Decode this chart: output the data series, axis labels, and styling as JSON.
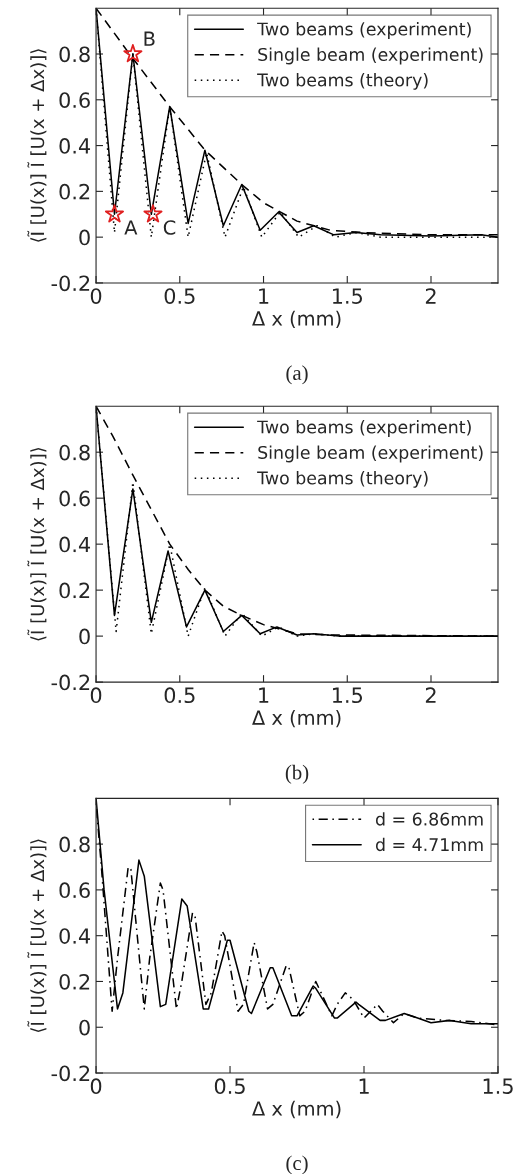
{
  "chart_data": [
    {
      "type": "line",
      "xlabel": "Δ x (mm)",
      "ylabel": "⟨Ĩ [U(x)] Ĩ [U(x + Δx)]⟩",
      "xlim": [
        0,
        2.4
      ],
      "ylim": [
        -0.2,
        1.0
      ],
      "xticks": [
        0,
        0.5,
        1,
        1.5,
        2
      ],
      "yticks": [
        -0.2,
        0,
        0.2,
        0.4,
        0.6,
        0.8
      ],
      "grid": false,
      "legend": "top right",
      "series": [
        {
          "name": "Two beams (experiment)",
          "color": "#000000",
          "line_style": "solid",
          "x": [
            0,
            0.11,
            0.22,
            0.33,
            0.44,
            0.55,
            0.65,
            0.76,
            0.87,
            0.98,
            1.09,
            1.2,
            1.3,
            1.42,
            1.55,
            1.7,
            2.0,
            2.3,
            2.4
          ],
          "values": [
            1.0,
            0.1,
            0.8,
            0.1,
            0.57,
            0.06,
            0.38,
            0.05,
            0.23,
            0.03,
            0.11,
            0.02,
            0.05,
            0.01,
            0.02,
            0.01,
            0.005,
            0.01,
            0.0
          ]
        },
        {
          "name": "Single beam (experiment)",
          "color": "#000000",
          "line_style": "dashed",
          "x": [
            0,
            0.2,
            0.44,
            0.65,
            0.87,
            1.0,
            1.2,
            1.4,
            1.6,
            2.0,
            2.4
          ],
          "values": [
            1.0,
            0.8,
            0.57,
            0.38,
            0.23,
            0.15,
            0.07,
            0.03,
            0.02,
            0.01,
            0.01
          ]
        },
        {
          "name": "Two beams (theory)",
          "color": "#000000",
          "line_style": "dotted",
          "x": [
            0,
            0.11,
            0.22,
            0.33,
            0.44,
            0.55,
            0.66,
            0.77,
            0.88,
            0.99,
            1.1,
            1.21,
            1.32,
            1.43,
            1.55,
            1.7,
            2.4
          ],
          "values": [
            1.0,
            0.02,
            0.8,
            0.0,
            0.57,
            0.0,
            0.37,
            0.0,
            0.22,
            0.0,
            0.11,
            0.0,
            0.05,
            0.0,
            0.02,
            0.0,
            0.0
          ]
        },
        {
          "type": "scatter",
          "marker": "star",
          "color": "#e02020",
          "x": [
            0.11,
            0.22,
            0.34
          ],
          "values": [
            0.1,
            0.8,
            0.1
          ]
        }
      ],
      "annotations": [
        "(a)",
        {
          "text": "A",
          "x": 0.11,
          "y": 0.1
        },
        {
          "text": "B",
          "x": 0.22,
          "y": 0.8
        },
        {
          "text": "C",
          "x": 0.34,
          "y": 0.1
        }
      ]
    },
    {
      "type": "line",
      "xlabel": "Δ x (mm)",
      "ylabel": "⟨Ĩ [U(x)] Ĩ [U(x + Δx)]⟩",
      "xlim": [
        0,
        2.4
      ],
      "ylim": [
        -0.2,
        1.0
      ],
      "xticks": [
        0,
        0.5,
        1,
        1.5,
        2
      ],
      "yticks": [
        -0.2,
        0,
        0.2,
        0.4,
        0.6,
        0.8
      ],
      "grid": false,
      "legend": "top right",
      "series": [
        {
          "name": "Two beams (experiment)",
          "color": "#000000",
          "line_style": "solid",
          "x": [
            0,
            0.11,
            0.22,
            0.33,
            0.43,
            0.54,
            0.65,
            0.76,
            0.87,
            0.98,
            1.08,
            1.2,
            1.3,
            1.45,
            2.4
          ],
          "values": [
            1.0,
            0.09,
            0.64,
            0.06,
            0.37,
            0.04,
            0.2,
            0.02,
            0.09,
            0.01,
            0.04,
            0.005,
            0.01,
            0.0,
            0.0
          ]
        },
        {
          "name": "Single beam (experiment)",
          "color": "#000000",
          "line_style": "dashed",
          "x": [
            0,
            0.1,
            0.22,
            0.33,
            0.44,
            0.55,
            0.65,
            0.76,
            0.87,
            1.0,
            1.1,
            1.2,
            1.4,
            2.4
          ],
          "values": [
            1.0,
            0.87,
            0.7,
            0.55,
            0.4,
            0.29,
            0.2,
            0.13,
            0.09,
            0.05,
            0.03,
            0.01,
            0.005,
            0.0
          ]
        },
        {
          "name": "Two beams (theory)",
          "color": "#000000",
          "line_style": "dotted",
          "x": [
            0,
            0.12,
            0.22,
            0.33,
            0.44,
            0.55,
            0.65,
            0.77,
            0.87,
            0.99,
            1.09,
            1.2,
            1.3,
            1.45,
            2.4
          ],
          "values": [
            1.0,
            0.02,
            0.67,
            0.01,
            0.4,
            0.0,
            0.21,
            0.0,
            0.1,
            0.0,
            0.04,
            0.0,
            0.01,
            0.0,
            0.0
          ]
        }
      ],
      "annotations": [
        "(b)"
      ]
    },
    {
      "type": "line",
      "xlabel": "Δ x (mm)",
      "ylabel": "⟨Ĩ [U(x)] Ĩ [U(x + Δx)]⟩",
      "xlim": [
        0,
        1.5
      ],
      "ylim": [
        -0.2,
        1.0
      ],
      "xticks": [
        0,
        0.5,
        1,
        1.5
      ],
      "yticks": [
        -0.2,
        0,
        0.2,
        0.4,
        0.6,
        0.8
      ],
      "grid": false,
      "legend": "top right",
      "series": [
        {
          "name": "d = 6.86mm",
          "color": "#000000",
          "line_style": "dashdot",
          "x": [
            0,
            0.02,
            0.06,
            0.08,
            0.12,
            0.13,
            0.18,
            0.2,
            0.24,
            0.25,
            0.3,
            0.32,
            0.36,
            0.37,
            0.41,
            0.43,
            0.47,
            0.48,
            0.53,
            0.55,
            0.59,
            0.6,
            0.64,
            0.66,
            0.71,
            0.72,
            0.76,
            0.78,
            0.82,
            0.84,
            0.88,
            0.9,
            0.93,
            0.96,
            1.0,
            1.05,
            1.07,
            1.11,
            1.15,
            1.2,
            1.3,
            1.4,
            1.5
          ],
          "values": [
            0.98,
            0.7,
            0.07,
            0.3,
            0.7,
            0.69,
            0.08,
            0.3,
            0.63,
            0.6,
            0.08,
            0.2,
            0.5,
            0.48,
            0.1,
            0.15,
            0.42,
            0.4,
            0.07,
            0.1,
            0.37,
            0.33,
            0.08,
            0.1,
            0.27,
            0.26,
            0.05,
            0.07,
            0.2,
            0.15,
            0.05,
            0.1,
            0.15,
            0.12,
            0.04,
            0.1,
            0.07,
            0.02,
            0.06,
            0.04,
            0.03,
            0.025,
            0.01
          ]
        },
        {
          "name": "d = 4.71mm",
          "color": "#000000",
          "line_style": "solid",
          "x": [
            0,
            0.03,
            0.08,
            0.1,
            0.16,
            0.18,
            0.24,
            0.26,
            0.32,
            0.34,
            0.4,
            0.42,
            0.49,
            0.5,
            0.57,
            0.58,
            0.65,
            0.66,
            0.73,
            0.75,
            0.81,
            0.82,
            0.89,
            0.9,
            0.97,
            0.98,
            1.06,
            1.08,
            1.15,
            1.2,
            1.25,
            1.32,
            1.4,
            1.5
          ],
          "values": [
            1.0,
            0.6,
            0.08,
            0.15,
            0.73,
            0.66,
            0.09,
            0.1,
            0.56,
            0.53,
            0.08,
            0.08,
            0.38,
            0.38,
            0.07,
            0.06,
            0.26,
            0.26,
            0.05,
            0.05,
            0.18,
            0.17,
            0.04,
            0.04,
            0.11,
            0.1,
            0.03,
            0.03,
            0.06,
            0.04,
            0.02,
            0.03,
            0.015,
            0.015
          ]
        }
      ],
      "annotations": [
        "(c)"
      ]
    }
  ]
}
